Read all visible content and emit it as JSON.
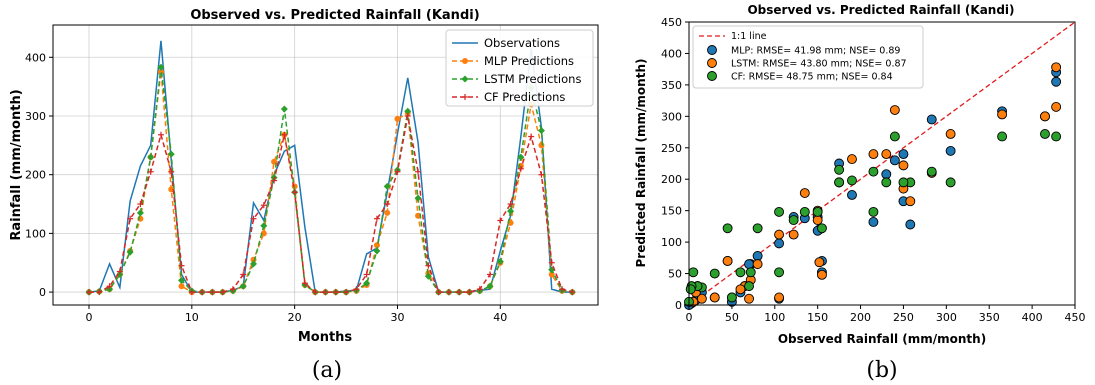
{
  "captions": {
    "a": "(a)",
    "b": "(b)"
  },
  "chart_data": [
    {
      "type": "line",
      "title": "Observed vs. Predicted Rainfall (Kandi)",
      "xlabel": "Months",
      "ylabel": "Rainfall (mm/month)",
      "xlim": [
        -3.5,
        49.5
      ],
      "ylim": [
        -22,
        455
      ],
      "xticks": [
        0,
        10,
        20,
        30,
        40
      ],
      "yticks": [
        0,
        100,
        200,
        300,
        400
      ],
      "legend_position": "top-right",
      "grid": true,
      "series": [
        {
          "name": "Observations",
          "color": "#1f77b4",
          "style": "solid",
          "marker": "none",
          "x": [
            0,
            1,
            2,
            3,
            4,
            5,
            6,
            7,
            8,
            9,
            10,
            11,
            12,
            13,
            14,
            15,
            16,
            17,
            18,
            19,
            20,
            21,
            22,
            23,
            24,
            25,
            26,
            27,
            28,
            29,
            30,
            31,
            32,
            33,
            34,
            35,
            36,
            37,
            38,
            39,
            40,
            41,
            42,
            43,
            44,
            45,
            46,
            47
          ],
          "values": [
            0,
            2,
            48,
            8,
            155,
            215,
            250,
            428,
            225,
            30,
            0,
            0,
            0,
            0,
            3,
            10,
            152,
            122,
            200,
            240,
            250,
            110,
            0,
            0,
            0,
            2,
            3,
            65,
            75,
            170,
            270,
            365,
            255,
            60,
            0,
            0,
            0,
            0,
            3,
            5,
            70,
            130,
            265,
            415,
            280,
            5,
            0,
            0
          ]
        },
        {
          "name": "MLP Predictions",
          "color": "#ff7f0e",
          "style": "dashed",
          "marker": "circle",
          "x": [
            0,
            1,
            2,
            3,
            4,
            5,
            6,
            7,
            8,
            9,
            10,
            11,
            12,
            13,
            14,
            15,
            16,
            17,
            18,
            19,
            20,
            21,
            22,
            23,
            24,
            25,
            26,
            27,
            28,
            29,
            30,
            31,
            32,
            33,
            34,
            35,
            36,
            37,
            38,
            39,
            40,
            41,
            42,
            43,
            44,
            45,
            46,
            47
          ],
          "values": [
            0,
            1,
            5,
            30,
            70,
            125,
            230,
            375,
            175,
            10,
            0,
            0,
            0,
            0,
            2,
            10,
            55,
            100,
            222,
            268,
            180,
            12,
            0,
            0,
            0,
            0,
            2,
            12,
            80,
            135,
            295,
            305,
            130,
            32,
            0,
            0,
            0,
            0,
            2,
            10,
            50,
            118,
            215,
            320,
            250,
            30,
            2,
            0
          ]
        },
        {
          "name": "LSTM Predictions",
          "color": "#2ca02c",
          "style": "dashed",
          "marker": "diamond",
          "x": [
            0,
            1,
            2,
            3,
            4,
            5,
            6,
            7,
            8,
            9,
            10,
            11,
            12,
            13,
            14,
            15,
            16,
            17,
            18,
            19,
            20,
            21,
            22,
            23,
            24,
            25,
            26,
            27,
            28,
            29,
            30,
            31,
            32,
            33,
            34,
            35,
            36,
            37,
            38,
            39,
            40,
            41,
            42,
            43,
            44,
            45,
            46,
            47
          ],
          "values": [
            0,
            1,
            5,
            30,
            68,
            135,
            230,
            383,
            235,
            20,
            2,
            0,
            0,
            0,
            2,
            10,
            48,
            113,
            195,
            312,
            170,
            12,
            0,
            0,
            0,
            0,
            3,
            15,
            70,
            180,
            208,
            308,
            160,
            27,
            0,
            0,
            0,
            0,
            2,
            10,
            52,
            138,
            230,
            348,
            275,
            38,
            3,
            0
          ]
        },
        {
          "name": "CF Predictions",
          "color": "#d62728",
          "style": "dashed",
          "marker": "plus",
          "x": [
            0,
            1,
            2,
            3,
            4,
            5,
            6,
            7,
            8,
            9,
            10,
            11,
            12,
            13,
            14,
            15,
            16,
            17,
            18,
            19,
            20,
            21,
            22,
            23,
            24,
            25,
            26,
            27,
            28,
            29,
            30,
            31,
            32,
            33,
            34,
            35,
            36,
            37,
            38,
            39,
            40,
            41,
            42,
            43,
            44,
            45,
            46,
            47
          ],
          "values": [
            0,
            0,
            10,
            35,
            125,
            150,
            205,
            268,
            205,
            45,
            0,
            0,
            0,
            0,
            5,
            30,
            125,
            148,
            190,
            268,
            170,
            15,
            0,
            0,
            0,
            0,
            5,
            30,
            125,
            150,
            205,
            300,
            205,
            45,
            0,
            0,
            0,
            0,
            5,
            30,
            122,
            150,
            210,
            265,
            200,
            50,
            5,
            0
          ]
        }
      ]
    },
    {
      "type": "scatter",
      "title": "Observed vs. Predicted Rainfall (Kandi)",
      "xlabel": "Observed Rainfall (mm/month)",
      "ylabel": "Predicted Rainfall (mm/month)",
      "xlim": [
        0,
        450
      ],
      "ylim": [
        0,
        450
      ],
      "xticks": [
        0,
        50,
        100,
        150,
        200,
        250,
        300,
        350,
        400,
        450
      ],
      "yticks": [
        0,
        50,
        100,
        150,
        200,
        250,
        300,
        350,
        400,
        450
      ],
      "legend_position": "top-left",
      "grid": false,
      "reference_line": {
        "label": "1:1 line",
        "color": "#e41a1c"
      },
      "series": [
        {
          "name": "MLP: RMSE= 41.98 mm; NSE= 0.89",
          "color": "#1f77b4",
          "x": [
            428,
            428,
            415,
            365,
            305,
            283,
            258,
            250,
            250,
            240,
            230,
            215,
            190,
            175,
            155,
            155,
            152,
            150,
            150,
            135,
            122,
            105,
            105,
            80,
            72,
            70,
            65,
            60,
            50,
            45,
            30,
            15,
            10,
            8,
            5,
            3,
            2,
            0
          ],
          "y": [
            370,
            355,
            300,
            308,
            245,
            295,
            128,
            165,
            240,
            230,
            208,
            132,
            175,
            225,
            52,
            70,
            120,
            140,
            118,
            138,
            140,
            98,
            10,
            78,
            65,
            65,
            30,
            20,
            5,
            70,
            12,
            20,
            10,
            8,
            5,
            3,
            2,
            0
          ]
        },
        {
          "name": "LSTM: RMSE= 43.80 mm; NSE= 0.87",
          "color": "#ff7f0e",
          "x": [
            428,
            428,
            415,
            365,
            305,
            283,
            258,
            250,
            250,
            240,
            230,
            215,
            190,
            175,
            155,
            152,
            150,
            150,
            135,
            122,
            105,
            105,
            80,
            72,
            70,
            65,
            60,
            50,
            45,
            30,
            15,
            10,
            8,
            5
          ],
          "y": [
            378,
            315,
            300,
            303,
            272,
            210,
            165,
            185,
            222,
            310,
            240,
            240,
            232,
            195,
            48,
            68,
            150,
            135,
            178,
            112,
            112,
            12,
            65,
            40,
            10,
            30,
            25,
            12,
            70,
            12,
            10,
            30,
            20,
            5
          ]
        },
        {
          "name": "CF: RMSE= 48.75 mm; NSE= 0.84",
          "color": "#2ca02c",
          "x": [
            428,
            415,
            365,
            305,
            283,
            258,
            250,
            240,
            230,
            215,
            215,
            190,
            175,
            175,
            155,
            150,
            135,
            122,
            105,
            105,
            80,
            72,
            70,
            60,
            50,
            45,
            30,
            15,
            10,
            5,
            3,
            2,
            0
          ],
          "y": [
            268,
            272,
            268,
            195,
            212,
            195,
            195,
            268,
            195,
            148,
            212,
            198,
            215,
            195,
            122,
            148,
            148,
            135,
            148,
            52,
            122,
            52,
            30,
            52,
            12,
            122,
            50,
            28,
            30,
            52,
            30,
            25,
            5
          ]
        }
      ]
    }
  ]
}
